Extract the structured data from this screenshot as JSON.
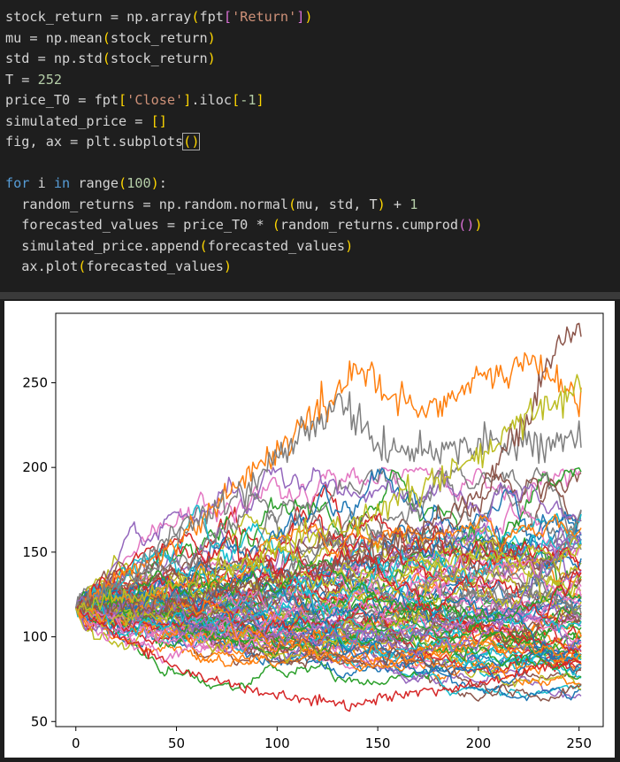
{
  "code": {
    "lines": [
      [
        {
          "t": "stock_return = np.array",
          "c": ""
        },
        {
          "t": "(",
          "c": "tok-b1"
        },
        {
          "t": "fpt",
          "c": ""
        },
        {
          "t": "[",
          "c": "tok-b2"
        },
        {
          "t": "'Return'",
          "c": "tok-str"
        },
        {
          "t": "]",
          "c": "tok-b2"
        },
        {
          "t": ")",
          "c": "tok-b1"
        }
      ],
      [
        {
          "t": "mu = np.mean",
          "c": ""
        },
        {
          "t": "(",
          "c": "tok-b1"
        },
        {
          "t": "stock_return",
          "c": ""
        },
        {
          "t": ")",
          "c": "tok-b1"
        }
      ],
      [
        {
          "t": "std = np.std",
          "c": ""
        },
        {
          "t": "(",
          "c": "tok-b1"
        },
        {
          "t": "stock_return",
          "c": ""
        },
        {
          "t": ")",
          "c": "tok-b1"
        }
      ],
      [
        {
          "t": "T = ",
          "c": ""
        },
        {
          "t": "252",
          "c": "tok-num"
        }
      ],
      [
        {
          "t": "price_T0 = fpt",
          "c": ""
        },
        {
          "t": "[",
          "c": "tok-b1"
        },
        {
          "t": "'Close'",
          "c": "tok-str"
        },
        {
          "t": "]",
          "c": "tok-b1"
        },
        {
          "t": ".iloc",
          "c": ""
        },
        {
          "t": "[",
          "c": "tok-b1"
        },
        {
          "t": "-1",
          "c": "tok-num"
        },
        {
          "t": "]",
          "c": "tok-b1"
        }
      ],
      [
        {
          "t": "simulated_price = ",
          "c": ""
        },
        {
          "t": "[]",
          "c": "tok-b1"
        }
      ],
      [
        {
          "t": "fig, ax = plt.subplots",
          "c": ""
        },
        {
          "t": "()",
          "c": "tok-b1 tok-cursor"
        }
      ],
      [
        {
          "t": "",
          "c": ""
        }
      ],
      [
        {
          "t": "for",
          "c": "tok-kw"
        },
        {
          "t": " i ",
          "c": ""
        },
        {
          "t": "in",
          "c": "tok-kw"
        },
        {
          "t": " range",
          "c": ""
        },
        {
          "t": "(",
          "c": "tok-b1"
        },
        {
          "t": "100",
          "c": "tok-num"
        },
        {
          "t": ")",
          "c": "tok-b1"
        },
        {
          "t": ":",
          "c": ""
        }
      ],
      [
        {
          "t": "  random_returns = np.random.normal",
          "c": ""
        },
        {
          "t": "(",
          "c": "tok-b1"
        },
        {
          "t": "mu, std, T",
          "c": ""
        },
        {
          "t": ")",
          "c": "tok-b1"
        },
        {
          "t": " + ",
          "c": ""
        },
        {
          "t": "1",
          "c": "tok-num"
        }
      ],
      [
        {
          "t": "  forecasted_values = price_T0 * ",
          "c": ""
        },
        {
          "t": "(",
          "c": "tok-b1"
        },
        {
          "t": "random_returns.cumprod",
          "c": ""
        },
        {
          "t": "()",
          "c": "tok-b2"
        },
        {
          "t": ")",
          "c": "tok-b1"
        }
      ],
      [
        {
          "t": "  simulated_price.append",
          "c": ""
        },
        {
          "t": "(",
          "c": "tok-b1"
        },
        {
          "t": "forecasted_values",
          "c": ""
        },
        {
          "t": ")",
          "c": "tok-b1"
        }
      ],
      [
        {
          "t": "  ax.plot",
          "c": ""
        },
        {
          "t": "(",
          "c": "tok-b1"
        },
        {
          "t": "forecasted_values",
          "c": ""
        },
        {
          "t": ")",
          "c": "tok-b1"
        }
      ]
    ]
  },
  "chart_data": {
    "type": "line",
    "title": "",
    "xlabel": "",
    "ylabel": "",
    "xlim": [
      -10,
      262
    ],
    "ylim": [
      47,
      291
    ],
    "x_ticks": [
      0,
      50,
      100,
      150,
      200,
      250
    ],
    "y_ticks": [
      50,
      100,
      150,
      200,
      250
    ],
    "grid": false,
    "n_series": 100,
    "points_per_series": 252,
    "start_value": 117,
    "series_colors": [
      "#1f77b4",
      "#ff7f0e",
      "#2ca02c",
      "#d62728",
      "#9467bd",
      "#8c564b",
      "#e377c2",
      "#7f7f7f",
      "#bcbd22",
      "#17becf"
    ],
    "highlighted_series": [
      {
        "color": "#ff7f0e",
        "x": [
          0,
          25,
          50,
          75,
          100,
          125,
          140,
          150,
          175,
          200,
          225,
          245,
          252
        ],
        "y": [
          117,
          138,
          155,
          185,
          210,
          238,
          262,
          245,
          235,
          250,
          262,
          248,
          232
        ]
      },
      {
        "color": "#7f7f7f",
        "x": [
          0,
          25,
          50,
          75,
          100,
          125,
          130,
          140,
          150,
          175,
          200
        ],
        "y": [
          117,
          135,
          162,
          178,
          205,
          232,
          246,
          225,
          212,
          210,
          215
        ]
      },
      {
        "color": "#8c564b",
        "x": [
          0,
          50,
          100,
          150,
          200,
          225,
          235,
          245,
          252
        ],
        "y": [
          117,
          120,
          135,
          150,
          185,
          230,
          262,
          280,
          276
        ]
      },
      {
        "color": "#d62728",
        "x": [
          0,
          25,
          50,
          75,
          100,
          125,
          135,
          150,
          175,
          200,
          225,
          252
        ],
        "y": [
          117,
          98,
          82,
          72,
          65,
          62,
          58,
          64,
          68,
          72,
          80,
          88
        ]
      },
      {
        "color": "#bcbd22",
        "x": [
          0,
          50,
          100,
          150,
          200,
          225,
          252
        ],
        "y": [
          117,
          130,
          150,
          175,
          205,
          230,
          250
        ]
      }
    ]
  }
}
